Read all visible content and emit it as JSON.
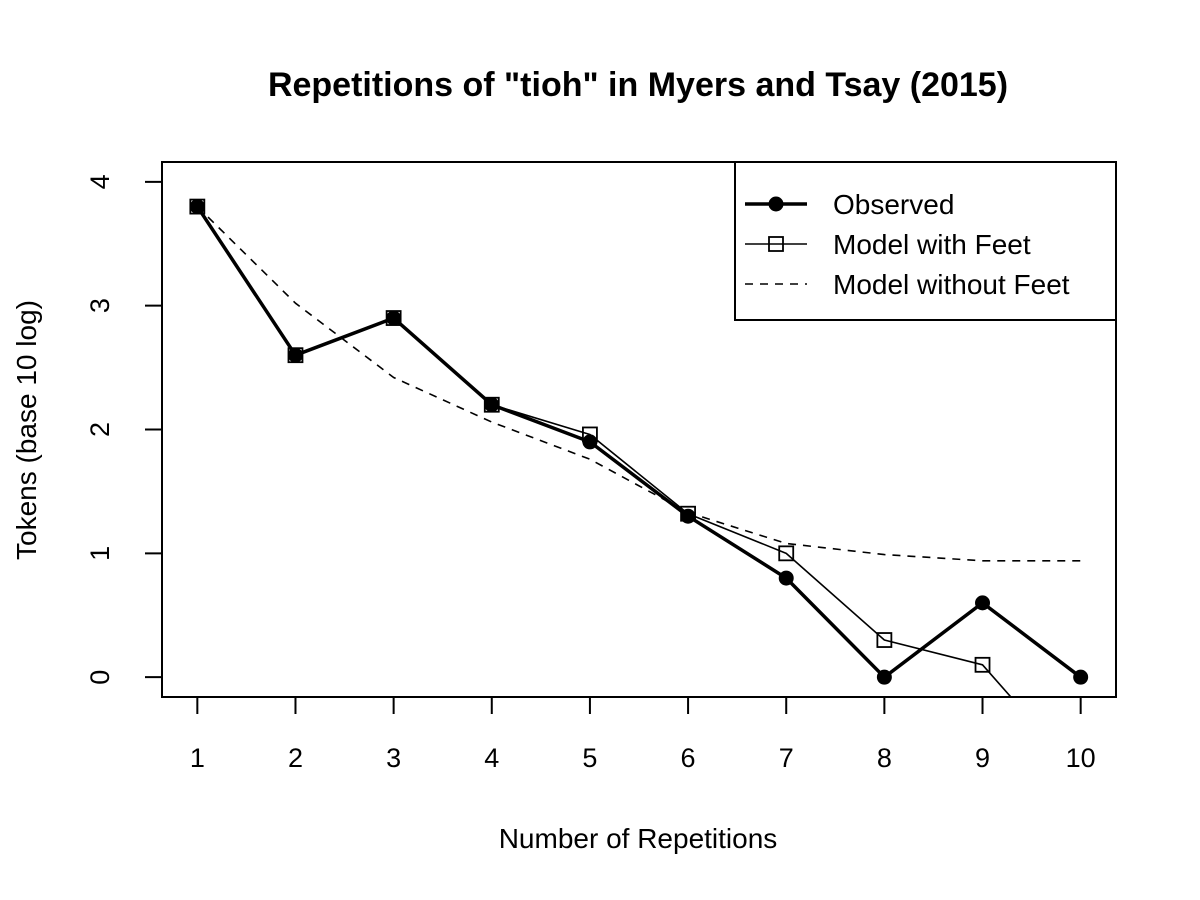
{
  "chart_data": {
    "type": "line",
    "title": "Repetitions of \"tioh\" in Myers and Tsay (2015)",
    "xlabel": "Number of Repetitions",
    "ylabel": "Tokens (base 10 log)",
    "x": [
      1,
      2,
      3,
      4,
      5,
      6,
      7,
      8,
      9,
      10
    ],
    "x_ticks": [
      1,
      2,
      3,
      4,
      5,
      6,
      7,
      8,
      9,
      10
    ],
    "y_ticks": [
      0,
      1,
      2,
      3,
      4
    ],
    "xlim": [
      0.64,
      10.36
    ],
    "ylim": [
      -0.16,
      4.16
    ],
    "grid": false,
    "legend_position": "top-right",
    "series": [
      {
        "name": "Observed",
        "style": "solid-thick",
        "marker": "filled-circle",
        "values": [
          3.8,
          2.6,
          2.9,
          2.2,
          1.9,
          1.3,
          0.8,
          0.0,
          0.6,
          0.0
        ]
      },
      {
        "name": "Model with Feet",
        "style": "solid-thin",
        "marker": "open-square",
        "values": [
          3.8,
          2.6,
          2.9,
          2.2,
          1.96,
          1.32,
          1.0,
          0.3,
          0.1,
          -0.8
        ]
      },
      {
        "name": "Model without Feet",
        "style": "dashed",
        "marker": "none",
        "values": [
          3.8,
          3.02,
          2.42,
          2.06,
          1.76,
          1.33,
          1.08,
          0.99,
          0.94,
          0.94
        ]
      }
    ],
    "colors": {
      "line": "#000000",
      "background": "#ffffff"
    }
  }
}
